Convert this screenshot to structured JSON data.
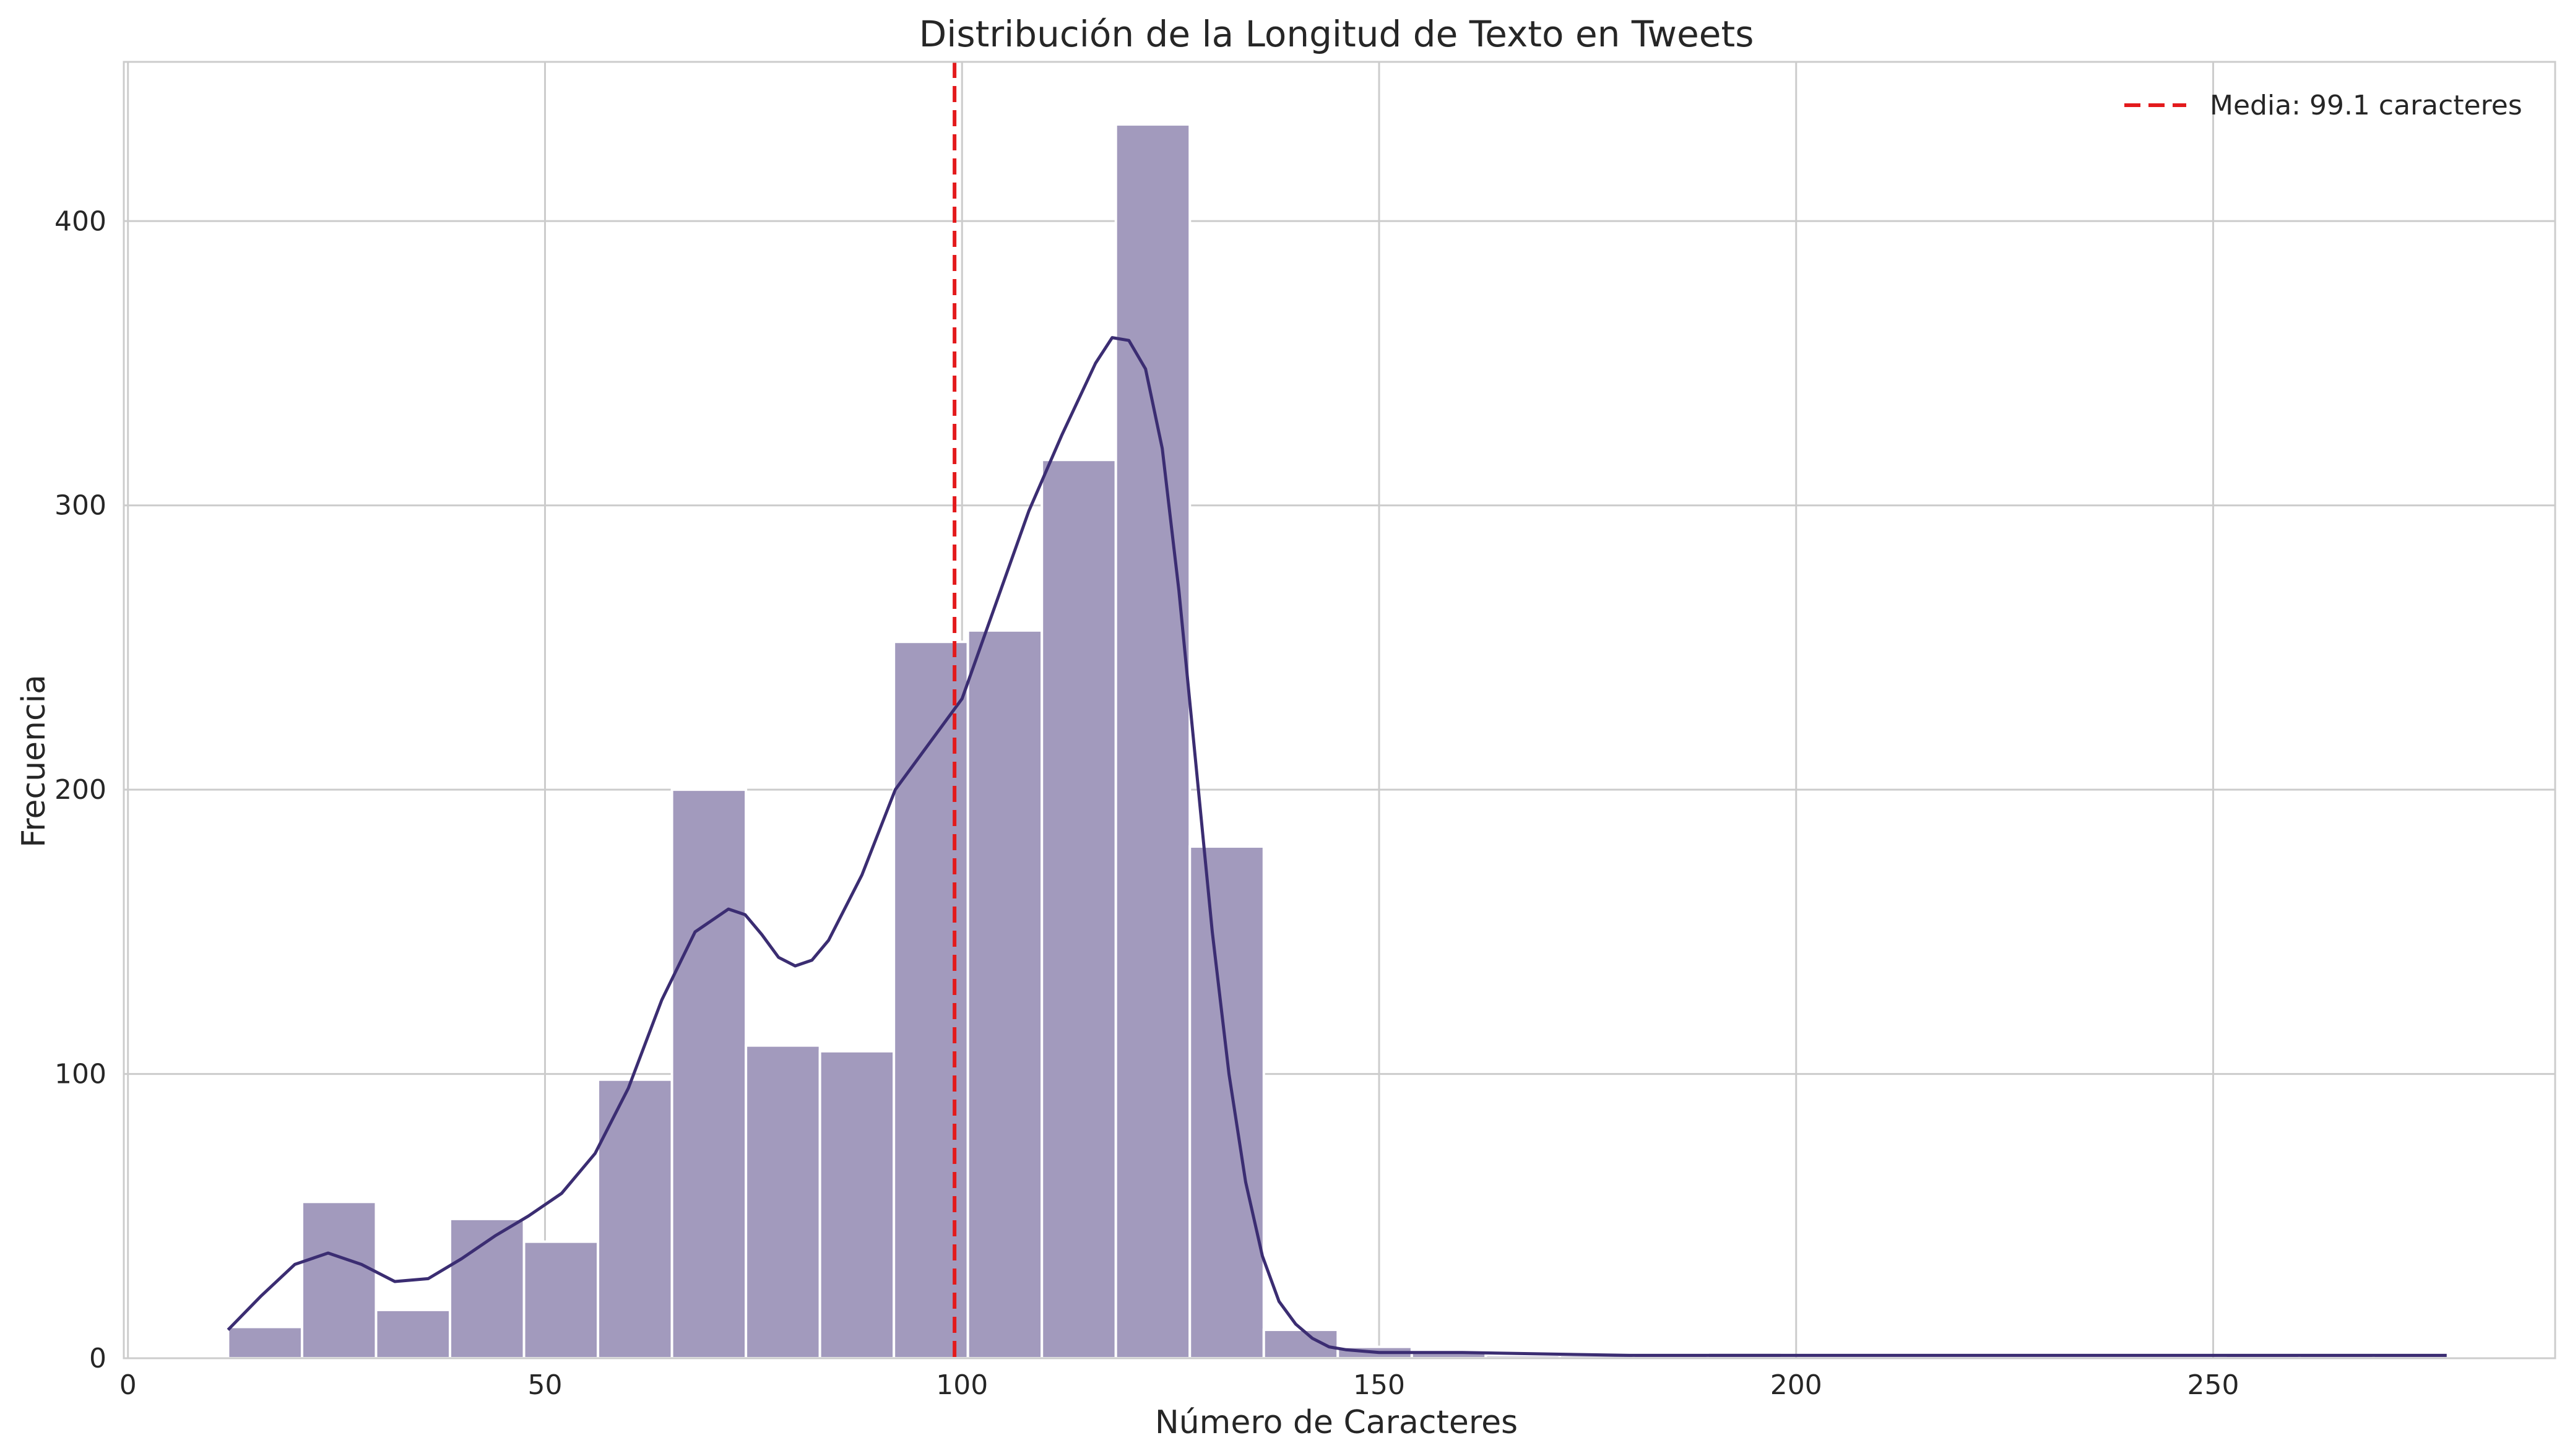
{
  "chart_data": {
    "type": "bar",
    "title": "Distribución de la Longitud de Texto en Tweets",
    "xlabel": "Número de Caracteres",
    "ylabel": "Frecuencia",
    "xlim": [
      -0.5,
      291
    ],
    "ylim": [
      0,
      456
    ],
    "xticks": [
      0,
      50,
      100,
      150,
      200,
      250
    ],
    "yticks": [
      0,
      100,
      200,
      300,
      400
    ],
    "grid": true,
    "legend_placement": "top-right",
    "bin_width": 8.87,
    "bins": [
      {
        "x0": 12.0,
        "count": 11
      },
      {
        "x0": 20.87,
        "count": 55
      },
      {
        "x0": 29.74,
        "count": 17
      },
      {
        "x0": 38.61,
        "count": 49
      },
      {
        "x0": 47.48,
        "count": 41
      },
      {
        "x0": 56.35,
        "count": 98
      },
      {
        "x0": 65.22,
        "count": 200
      },
      {
        "x0": 74.09,
        "count": 110
      },
      {
        "x0": 82.96,
        "count": 108
      },
      {
        "x0": 91.83,
        "count": 252
      },
      {
        "x0": 100.7,
        "count": 256
      },
      {
        "x0": 109.57,
        "count": 316
      },
      {
        "x0": 118.44,
        "count": 434
      },
      {
        "x0": 127.31,
        "count": 180
      },
      {
        "x0": 136.18,
        "count": 10
      },
      {
        "x0": 145.05,
        "count": 4
      },
      {
        "x0": 153.92,
        "count": 2
      },
      {
        "x0": 162.79,
        "count": 1
      },
      {
        "x0": 171.66,
        "count": 1
      },
      {
        "x0": 180.53,
        "count": 1
      },
      {
        "x0": 189.4,
        "count": 2
      },
      {
        "x0": 198.27,
        "count": 0
      },
      {
        "x0": 207.14,
        "count": 0
      },
      {
        "x0": 216.01,
        "count": 0
      },
      {
        "x0": 224.88,
        "count": 0
      },
      {
        "x0": 233.75,
        "count": 0
      },
      {
        "x0": 242.62,
        "count": 0
      },
      {
        "x0": 251.49,
        "count": 1
      },
      {
        "x0": 260.36,
        "count": 1
      },
      {
        "x0": 269.23,
        "count": 1
      }
    ],
    "kde": {
      "x": [
        12,
        16,
        20,
        24,
        28,
        32,
        36,
        40,
        44,
        48,
        52,
        56,
        60,
        64,
        68,
        72,
        74,
        76,
        78,
        80,
        82,
        84,
        88,
        92,
        96,
        100,
        104,
        108,
        112,
        116,
        118,
        120,
        122,
        124,
        126,
        128,
        130,
        132,
        134,
        136,
        138,
        140,
        142,
        144,
        146,
        150,
        160,
        180,
        200,
        220,
        240,
        260,
        278
      ],
      "y": [
        10,
        22,
        33,
        37,
        33,
        27,
        28,
        35,
        43,
        50,
        58,
        72,
        95,
        126,
        150,
        158,
        156,
        149,
        141,
        138,
        140,
        147,
        170,
        200,
        216,
        232,
        265,
        298,
        325,
        350,
        359,
        358,
        348,
        320,
        270,
        210,
        150,
        100,
        62,
        36,
        20,
        12,
        7,
        4,
        3,
        2,
        2,
        1,
        1,
        1,
        1,
        1,
        1
      ]
    },
    "mean_line": {
      "x": 99.1,
      "color": "#e31a1c"
    },
    "legend": [
      {
        "label": "Media: 99.1 caracteres",
        "style": "dashed",
        "color": "#e31a1c"
      }
    ],
    "colors": {
      "bar": "#a29abd",
      "kde": "#3b2d72",
      "grid": "#cccccc",
      "axes": "#cccccc"
    }
  }
}
